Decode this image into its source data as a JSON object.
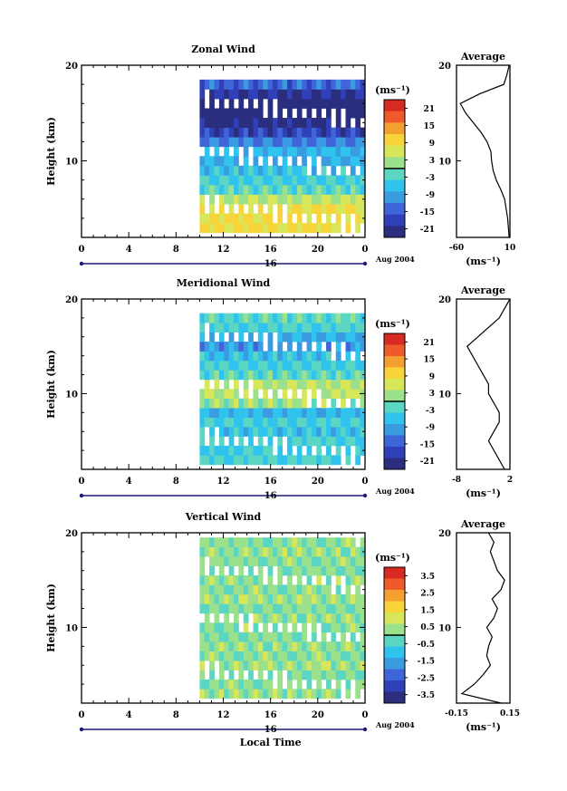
{
  "colorbar_unit": "(ms⁻¹)",
  "average_title": "Average",
  "x_axis": {
    "ticks": [
      "0",
      "4",
      "8",
      "12",
      "16",
      "20",
      "0"
    ],
    "day_label": "16",
    "date_label": "Aug 2004",
    "xlabel": "Local Time"
  },
  "chart_data": [
    {
      "type": "heatmap",
      "title": "Zonal Wind",
      "ylabel": "Height (km)",
      "xlim": [
        0,
        24
      ],
      "ylim": [
        2,
        20
      ],
      "y_ticks": [
        "20",
        "10"
      ],
      "data_start_hour": 10,
      "colorbar": {
        "ticks": [
          "21",
          "15",
          "9",
          "3",
          "-3",
          "-9",
          "-15",
          "-21"
        ],
        "vmin": -24,
        "vmax": 24
      },
      "profile_rows": [
        {
          "height": 3,
          "value": 9
        },
        {
          "height": 4,
          "value": 9
        },
        {
          "height": 5,
          "value": 8
        },
        {
          "height": 6,
          "value": 4
        },
        {
          "height": 7,
          "value": -2
        },
        {
          "height": 8,
          "value": -4
        },
        {
          "height": 9,
          "value": -6
        },
        {
          "height": 10,
          "value": -8
        },
        {
          "height": 11,
          "value": -7
        },
        {
          "height": 12,
          "value": -12
        },
        {
          "height": 13,
          "value": -18
        },
        {
          "height": 14,
          "value": -22
        },
        {
          "height": 15,
          "value": -24
        },
        {
          "height": 16,
          "value": -24
        },
        {
          "height": 17,
          "value": -20
        },
        {
          "height": 18,
          "value": -14
        }
      ],
      "average": {
        "title": "Average",
        "xlim": [
          -60,
          10
        ],
        "x_ticks": [
          "-60",
          "10"
        ],
        "xlabel": "(ms⁻¹)",
        "height": [
          2,
          3,
          4,
          5,
          6,
          7,
          8,
          9,
          10,
          11,
          12,
          13,
          14,
          15,
          16,
          17,
          18,
          19,
          20
        ],
        "value": [
          9,
          8,
          7,
          5,
          3,
          -2,
          -8,
          -12,
          -14,
          -15,
          -20,
          -28,
          -38,
          -48,
          -55,
          -30,
          2,
          6,
          9
        ]
      }
    },
    {
      "type": "heatmap",
      "title": "Meridional Wind",
      "ylabel": "Height (km)",
      "xlim": [
        0,
        24
      ],
      "ylim": [
        2,
        20
      ],
      "y_ticks": [
        "20",
        "10"
      ],
      "data_start_hour": 10,
      "colorbar": {
        "ticks": [
          "21",
          "15",
          "9",
          "3",
          "-3",
          "-9",
          "-15",
          "-21"
        ],
        "vmin": -24,
        "vmax": 24
      },
      "profile_rows": [
        {
          "height": 3,
          "value": -3
        },
        {
          "height": 4,
          "value": -5
        },
        {
          "height": 5,
          "value": -3
        },
        {
          "height": 6,
          "value": -6
        },
        {
          "height": 7,
          "value": -4
        },
        {
          "height": 8,
          "value": -7
        },
        {
          "height": 9,
          "value": 2
        },
        {
          "height": 10,
          "value": 5
        },
        {
          "height": 11,
          "value": 4
        },
        {
          "height": 12,
          "value": -2
        },
        {
          "height": 13,
          "value": -4
        },
        {
          "height": 14,
          "value": -6
        },
        {
          "height": 15,
          "value": -10
        },
        {
          "height": 16,
          "value": -8
        },
        {
          "height": 17,
          "value": -3
        },
        {
          "height": 18,
          "value": -2
        }
      ],
      "average": {
        "title": "Average",
        "xlim": [
          -8,
          2
        ],
        "x_ticks": [
          "-8",
          "2"
        ],
        "xlabel": "(ms⁻¹)",
        "height": [
          2,
          3,
          4,
          5,
          6,
          7,
          8,
          9,
          10,
          11,
          12,
          13,
          14,
          15,
          16,
          17,
          18,
          19,
          20
        ],
        "value": [
          1,
          0,
          -1,
          -2,
          -1,
          0,
          0,
          -1,
          -2,
          -2,
          -3,
          -4,
          -5,
          -6,
          -4,
          -2,
          0,
          1,
          2
        ]
      }
    },
    {
      "type": "heatmap",
      "title": "Vertical Wind",
      "ylabel": "Height (km)",
      "xlim": [
        0,
        24
      ],
      "ylim": [
        2,
        20
      ],
      "y_ticks": [
        "20",
        "10"
      ],
      "data_start_hour": 10,
      "colorbar": {
        "ticks": [
          "3.5",
          "2.5",
          "1.5",
          "0.5",
          "-0.5",
          "-1.5",
          "-2.5",
          "-3.5"
        ],
        "vmin": -4,
        "vmax": 4
      },
      "profile_rows": [
        {
          "height": 3,
          "value": 0.3
        },
        {
          "height": 4,
          "value": 0.2
        },
        {
          "height": 5,
          "value": 0.1
        },
        {
          "height": 6,
          "value": 0.4
        },
        {
          "height": 7,
          "value": 0.2
        },
        {
          "height": 8,
          "value": 0.3
        },
        {
          "height": 9,
          "value": 0.1
        },
        {
          "height": 10,
          "value": 0.2
        },
        {
          "height": 11,
          "value": 0.3
        },
        {
          "height": 12,
          "value": 0.1
        },
        {
          "height": 13,
          "value": 0.4
        },
        {
          "height": 14,
          "value": 0.2
        },
        {
          "height": 15,
          "value": 0.3
        },
        {
          "height": 16,
          "value": 0.1
        },
        {
          "height": 17,
          "value": 0.2
        },
        {
          "height": 18,
          "value": 0.3
        },
        {
          "height": 19,
          "value": 0.2
        }
      ],
      "average": {
        "title": "Average",
        "xlim": [
          -0.15,
          0.15
        ],
        "x_ticks": [
          "-0.15",
          "0.15"
        ],
        "xlabel": "(ms⁻¹)",
        "height": [
          2,
          3,
          4,
          5,
          6,
          7,
          8,
          9,
          10,
          11,
          12,
          13,
          14,
          15,
          16,
          17,
          18,
          19,
          20
        ],
        "value": [
          0.1,
          -0.12,
          -0.05,
          0.0,
          0.04,
          0.02,
          0.03,
          0.05,
          0.02,
          0.06,
          0.08,
          0.05,
          0.1,
          0.12,
          0.08,
          0.06,
          0.04,
          0.06,
          0.03
        ]
      }
    }
  ]
}
